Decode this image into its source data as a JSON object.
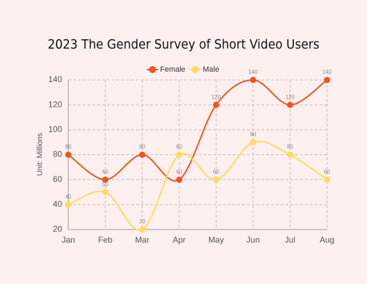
{
  "chart_data": {
    "type": "line",
    "title": "2023 The Gender Survey of Short Video Users",
    "y_label": "Unit: Millions",
    "categories": [
      "Jan",
      "Feb",
      "Mar",
      "Apr",
      "May",
      "Jun",
      "Jul",
      "Aug"
    ],
    "series": [
      {
        "name": "Female",
        "color": "#f4511e",
        "values": [
          80,
          60,
          80,
          60,
          120,
          140,
          120,
          140
        ]
      },
      {
        "name": "Male",
        "color": "#fddc5c",
        "values": [
          40,
          50,
          20,
          80,
          60,
          90,
          80,
          60
        ]
      }
    ],
    "ylim": [
      20,
      140
    ],
    "yticks": [
      20,
      40,
      60,
      80,
      100,
      120,
      140
    ],
    "grid": true,
    "smooth": true,
    "legend": "top"
  }
}
